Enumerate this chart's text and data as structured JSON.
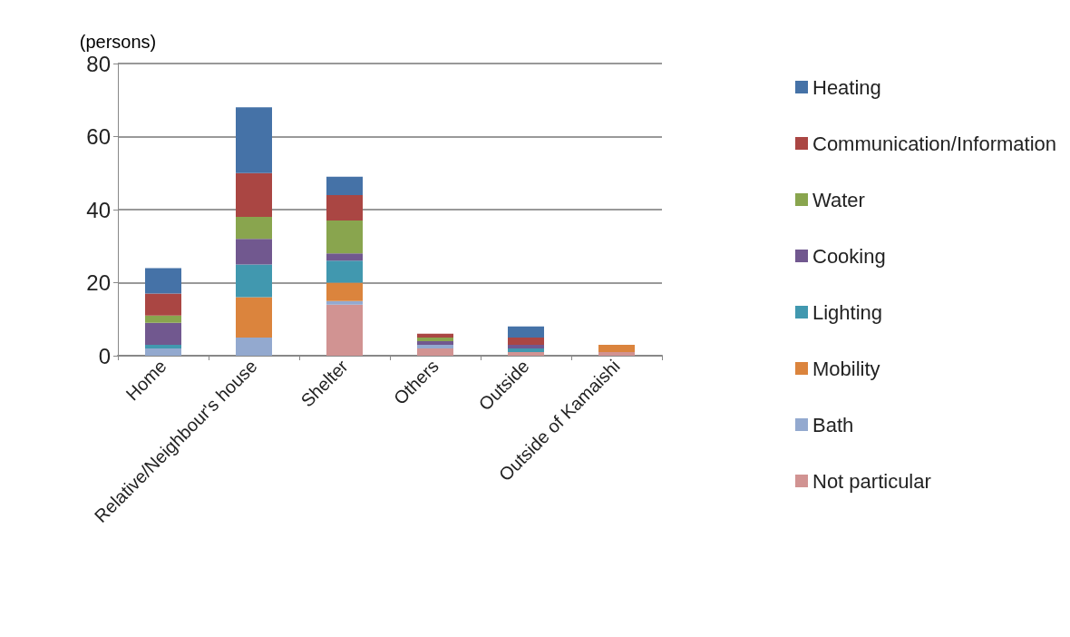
{
  "chart_data": {
    "type": "bar",
    "stacked": true,
    "ylabel": "(persons)",
    "categories": [
      "Home",
      "Relative/Neighbour's house",
      "Shelter",
      "Others",
      "Outside",
      "Outside of Kamaishi"
    ],
    "series": [
      {
        "name": "Not particular",
        "color": "#d19392",
        "values": [
          0,
          0,
          14,
          2,
          1,
          1
        ]
      },
      {
        "name": "Bath",
        "color": "#93a9cf",
        "values": [
          2,
          5,
          1,
          1,
          0,
          0
        ]
      },
      {
        "name": "Mobility",
        "color": "#db843d",
        "values": [
          0,
          11,
          5,
          0,
          0,
          2
        ]
      },
      {
        "name": "Lighting",
        "color": "#4198af",
        "values": [
          1,
          9,
          6,
          0,
          1,
          0
        ]
      },
      {
        "name": "Cooking",
        "color": "#71588f",
        "values": [
          6,
          7,
          2,
          1,
          1,
          0
        ]
      },
      {
        "name": "Water",
        "color": "#89a54e",
        "values": [
          2,
          6,
          9,
          1,
          0,
          0
        ]
      },
      {
        "name": "Communication/Information",
        "color": "#aa4643",
        "values": [
          6,
          12,
          7,
          1,
          2,
          0
        ]
      },
      {
        "name": "Heating",
        "color": "#4572a7",
        "values": [
          7,
          18,
          5,
          0,
          3,
          0
        ]
      }
    ],
    "ylim": [
      0,
      80
    ],
    "yticks": [
      0,
      20,
      40,
      60,
      80
    ],
    "grid": "y",
    "legend": "right"
  }
}
